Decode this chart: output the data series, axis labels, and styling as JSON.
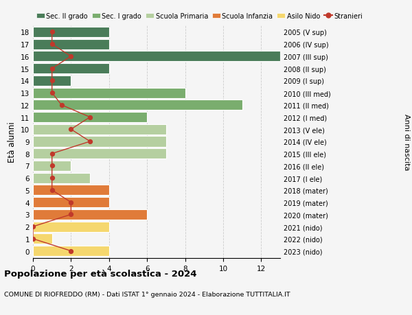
{
  "ages": [
    18,
    17,
    16,
    15,
    14,
    13,
    12,
    11,
    10,
    9,
    8,
    7,
    6,
    5,
    4,
    3,
    2,
    1,
    0
  ],
  "right_labels": [
    "2005 (V sup)",
    "2006 (IV sup)",
    "2007 (III sup)",
    "2008 (II sup)",
    "2009 (I sup)",
    "2010 (III med)",
    "2011 (II med)",
    "2012 (I med)",
    "2013 (V ele)",
    "2014 (IV ele)",
    "2015 (III ele)",
    "2016 (II ele)",
    "2017 (I ele)",
    "2018 (mater)",
    "2019 (mater)",
    "2020 (mater)",
    "2021 (nido)",
    "2022 (nido)",
    "2023 (nido)"
  ],
  "bar_values": [
    4,
    4,
    13,
    4,
    2,
    8,
    11,
    6,
    7,
    7,
    7,
    2,
    3,
    4,
    4,
    6,
    4,
    1,
    4
  ],
  "bar_colors": [
    "#4a7c59",
    "#4a7c59",
    "#4a7c59",
    "#4a7c59",
    "#4a7c59",
    "#7aad6e",
    "#7aad6e",
    "#7aad6e",
    "#b5cfa0",
    "#b5cfa0",
    "#b5cfa0",
    "#b5cfa0",
    "#b5cfa0",
    "#e07b39",
    "#e07b39",
    "#e07b39",
    "#f5d76e",
    "#f5d76e",
    "#f5d76e"
  ],
  "stranieri_values": [
    1,
    1,
    2,
    1,
    1,
    1,
    1.5,
    3,
    2,
    3,
    1,
    1,
    1,
    1,
    2,
    2,
    0,
    0,
    2
  ],
  "title": "Popolazione per età scolastica - 2024",
  "subtitle": "COMUNE DI RIOFREDDO (RM) - Dati ISTAT 1° gennaio 2024 - Elaborazione TUTTITALIA.IT",
  "ylabel_left": "Età alunni",
  "ylabel_right": "Anni di nascita",
  "xlim": [
    0,
    13
  ],
  "xticks": [
    0,
    2,
    4,
    6,
    8,
    10,
    12
  ],
  "legend_labels": [
    "Sec. II grado",
    "Sec. I grado",
    "Scuola Primaria",
    "Scuola Infanzia",
    "Asilo Nido",
    "Stranieri"
  ],
  "legend_colors": [
    "#4a7c59",
    "#7aad6e",
    "#b5cfa0",
    "#e07b39",
    "#f5d76e",
    "#c0392b"
  ],
  "stranieri_color": "#c0392b",
  "background_color": "#f5f5f5",
  "bar_edge_color": "white",
  "grid_color": "#cccccc"
}
